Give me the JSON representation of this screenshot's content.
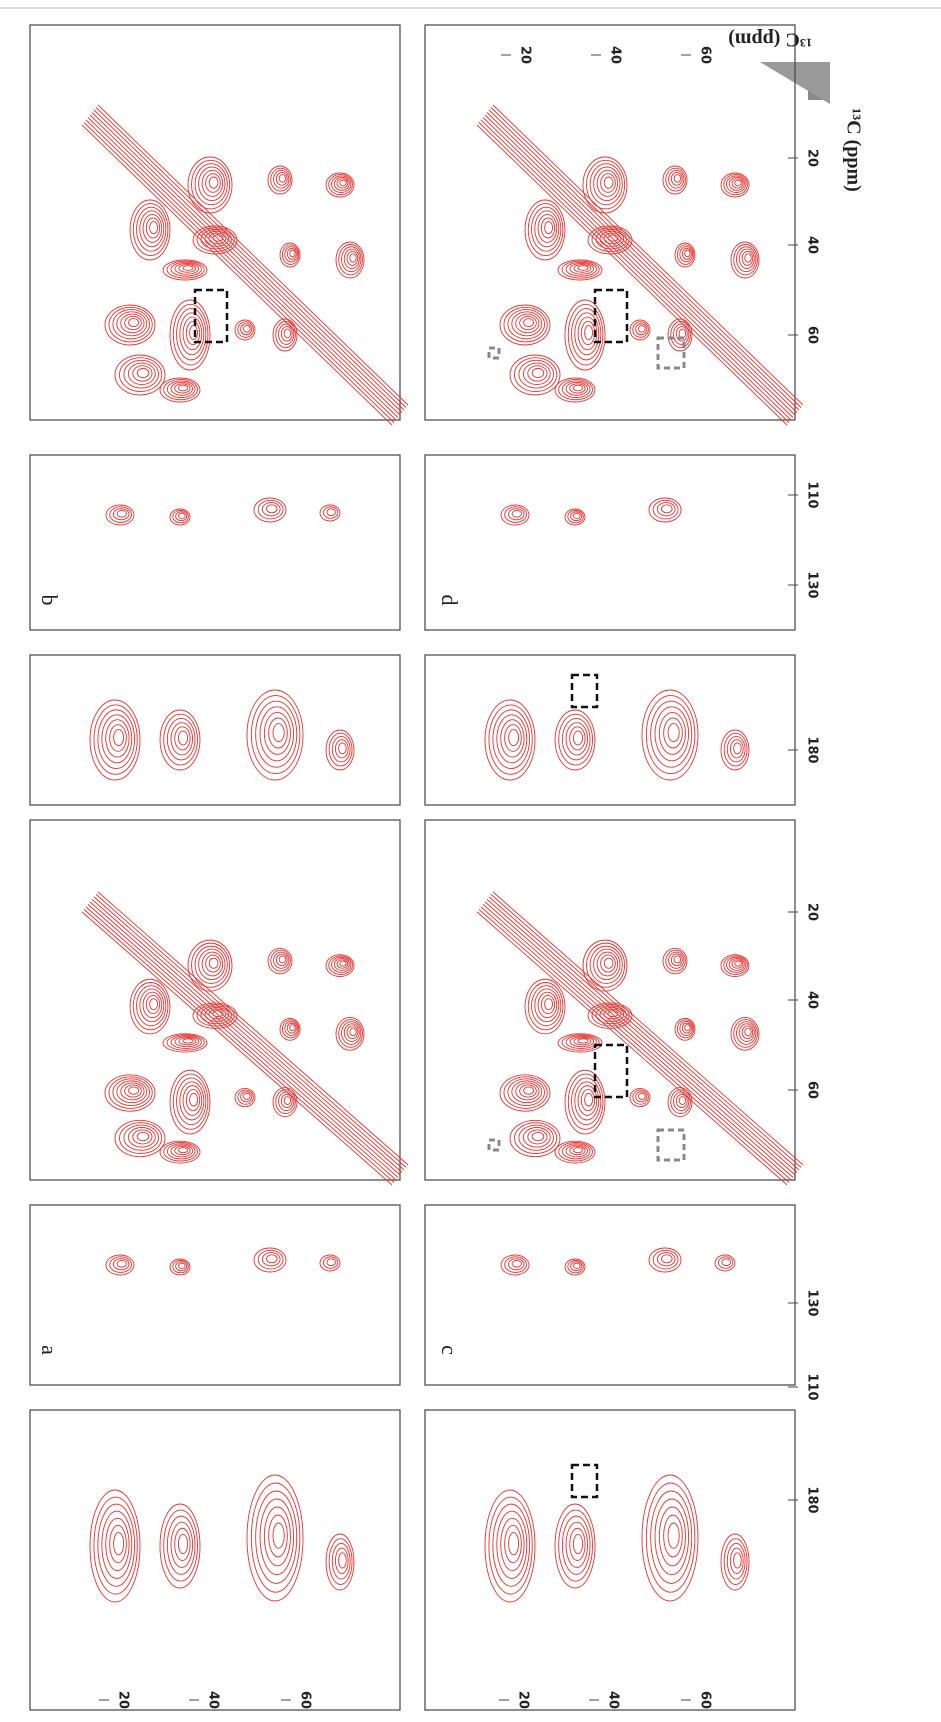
{
  "panels": [
    {
      "label": "b"
    },
    {
      "label": "d"
    },
    {
      "label": "a"
    },
    {
      "label": "c"
    }
  ],
  "ticks": {
    "top_right": [
      20,
      40,
      60
    ],
    "bottom_left": [
      20,
      40,
      60
    ],
    "bottom_right": [
      20,
      40,
      60
    ],
    "right_top": [
      20,
      40,
      60,
      110,
      130,
      180
    ],
    "right_bottom": [
      20,
      40,
      60,
      130,
      110,
      180
    ]
  },
  "axis_titles": {
    "corner": "¹³C (ppm)",
    "side": "¹³C (ppm)"
  }
}
